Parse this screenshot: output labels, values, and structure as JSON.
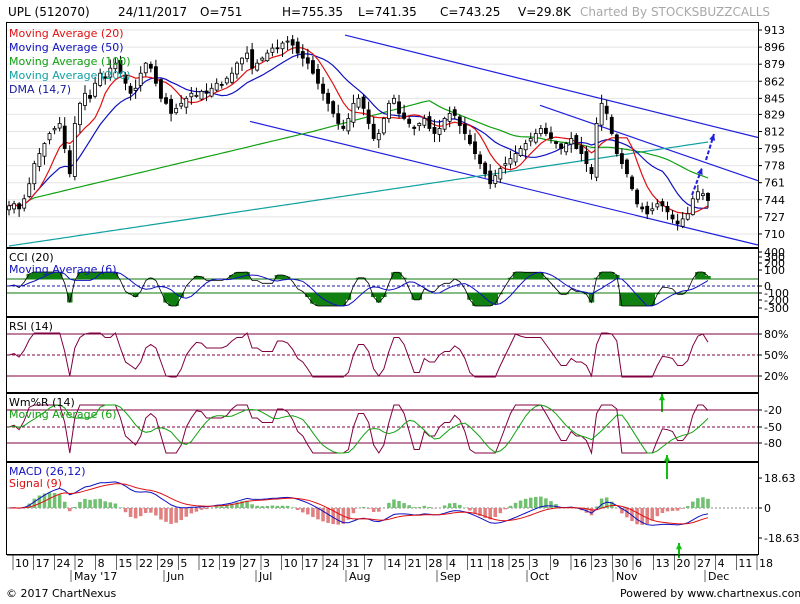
{
  "header": {
    "ticker": "UPL (512070)",
    "date": "24/11/2017",
    "open": "O=751",
    "high": "H=755.35",
    "low": "L=741.35",
    "close": "C=743.25",
    "volume": "V=29.8K",
    "watermark": "Charted By STOCKSBUZZCALLS"
  },
  "footer": {
    "copyright": "© 2017 ChartNexus",
    "powered": "Powered by www.chartnexus.com"
  },
  "colors": {
    "ma20": "#e01010",
    "ma50": "#1010c0",
    "ma100": "#10a010",
    "ma200": "#10a0a0",
    "dma": "#1818a0",
    "channel": "#2020e0",
    "rsi": "#800040",
    "wmr": "#800040",
    "macd": "#1010c0",
    "signal": "#e01010",
    "hist_pos": "#70c070",
    "hist_neg": "#e08080",
    "arrow_green": "#10c010",
    "arrow_blue": "#2020e0"
  },
  "chart_data": [
    {
      "type": "candlestick",
      "panel": "price",
      "legend": [
        "Moving Average (20)",
        "Moving Average (50)",
        "Moving Average (100)",
        "Moving Average (200)",
        "DMA (14,7)"
      ],
      "yticks": [
        913,
        896,
        879,
        862,
        845,
        829,
        812,
        795,
        778,
        761,
        744,
        727,
        710
      ],
      "ylim": [
        697,
        920
      ],
      "x": [
        "2017-05-10",
        "2017-05-11",
        "2017-05-12",
        "2017-05-15",
        "2017-05-16",
        "2017-05-17",
        "2017-05-18",
        "2017-05-19",
        "2017-05-22",
        "2017-05-23",
        "2017-05-24",
        "2017-05-25",
        "2017-05-26",
        "2017-05-29",
        "2017-05-30",
        "2017-05-31",
        "2017-06-01",
        "2017-06-02",
        "2017-06-05",
        "2017-06-06",
        "2017-06-07",
        "2017-06-08",
        "2017-06-09",
        "2017-06-12",
        "2017-06-13",
        "2017-06-14",
        "2017-06-15",
        "2017-06-16",
        "2017-06-19",
        "2017-06-20",
        "2017-06-21",
        "2017-06-22",
        "2017-06-23",
        "2017-06-26",
        "2017-06-27",
        "2017-06-28",
        "2017-06-29",
        "2017-06-30",
        "2017-07-03",
        "2017-07-04",
        "2017-07-05",
        "2017-07-06",
        "2017-07-07",
        "2017-07-10",
        "2017-07-11",
        "2017-07-12",
        "2017-07-13",
        "2017-07-14",
        "2017-07-17",
        "2017-07-18",
        "2017-07-19",
        "2017-07-20",
        "2017-07-21",
        "2017-07-24",
        "2017-07-25",
        "2017-07-26",
        "2017-07-27",
        "2017-07-28",
        "2017-07-31",
        "2017-08-01",
        "2017-08-02",
        "2017-08-03",
        "2017-08-04",
        "2017-08-07",
        "2017-08-08",
        "2017-08-09",
        "2017-08-10",
        "2017-08-11",
        "2017-08-14",
        "2017-08-16",
        "2017-08-17",
        "2017-08-18",
        "2017-08-21",
        "2017-08-22",
        "2017-08-23",
        "2017-08-24",
        "2017-08-28",
        "2017-08-29",
        "2017-08-30",
        "2017-08-31",
        "2017-09-01",
        "2017-09-04",
        "2017-09-05",
        "2017-09-06",
        "2017-09-07",
        "2017-09-08",
        "2017-09-11",
        "2017-09-12",
        "2017-09-13",
        "2017-09-14",
        "2017-09-15",
        "2017-09-18",
        "2017-09-19",
        "2017-09-20",
        "2017-09-21",
        "2017-09-22",
        "2017-09-25",
        "2017-09-26",
        "2017-09-27",
        "2017-09-28",
        "2017-09-29",
        "2017-10-03",
        "2017-10-04",
        "2017-10-05",
        "2017-10-06",
        "2017-10-09",
        "2017-10-10",
        "2017-10-11",
        "2017-10-12",
        "2017-10-13",
        "2017-10-16",
        "2017-10-17",
        "2017-10-18",
        "2017-10-19",
        "2017-10-23",
        "2017-10-24",
        "2017-10-25",
        "2017-10-26",
        "2017-10-27",
        "2017-10-30",
        "2017-10-31",
        "2017-11-01",
        "2017-11-02",
        "2017-11-03",
        "2017-11-06",
        "2017-11-07",
        "2017-11-08",
        "2017-11-09",
        "2017-11-10",
        "2017-11-13",
        "2017-11-14",
        "2017-11-15",
        "2017-11-16",
        "2017-11-17",
        "2017-11-20",
        "2017-11-21",
        "2017-11-22",
        "2017-11-23",
        "2017-11-24"
      ],
      "close": [
        738,
        740,
        735,
        745,
        760,
        780,
        790,
        800,
        810,
        815,
        820,
        795,
        770,
        820,
        840,
        850,
        845,
        860,
        870,
        865,
        875,
        880,
        870,
        860,
        850,
        855,
        870,
        880,
        875,
        860,
        845,
        840,
        830,
        835,
        840,
        845,
        850,
        848,
        852,
        850,
        855,
        860,
        858,
        865,
        870,
        880,
        885,
        890,
        875,
        880,
        885,
        890,
        895,
        895,
        900,
        902,
        898,
        890,
        885,
        880,
        870,
        860,
        850,
        840,
        830,
        820,
        815,
        825,
        840,
        845,
        835,
        820,
        805,
        810,
        825,
        840,
        845,
        830,
        825,
        820,
        815,
        820,
        825,
        815,
        810,
        815,
        825,
        830,
        828,
        818,
        810,
        800,
        790,
        780,
        770,
        760,
        768,
        775,
        780,
        785,
        790,
        795,
        800,
        805,
        810,
        815,
        810,
        805,
        800,
        795,
        800,
        805,
        795,
        790,
        780,
        770,
        820,
        840,
        830,
        810,
        790,
        780,
        770,
        755,
        740,
        735,
        730,
        735,
        740,
        738,
        732,
        725,
        720,
        725,
        730,
        745,
        752,
        750,
        743.25
      ],
      "trendlines": "descending channel + arrows",
      "xticks": [
        "10",
        "17",
        "24",
        "2",
        "8",
        "15",
        "22",
        "29",
        "5",
        "12",
        "19",
        "27",
        "3",
        "10",
        "17",
        "24",
        "31",
        "7",
        "14",
        "21",
        "28",
        "4",
        "11",
        "18",
        "25",
        "3",
        "9",
        "16",
        "23",
        "30",
        "6",
        "13",
        "20",
        "27",
        "4",
        "11",
        "18"
      ],
      "month_labels": [
        "May '17",
        "Jun",
        "Jul",
        "Aug",
        "Sep",
        "Oct",
        "Nov",
        "Dec"
      ]
    },
    {
      "type": "line",
      "panel": "cci",
      "legend": [
        "CCI (20)",
        "Moving Average (6)"
      ],
      "yticks": [
        "400",
        "300",
        "200",
        "100",
        "0",
        "-100",
        "-200",
        "-300"
      ]
    },
    {
      "type": "line",
      "panel": "rsi",
      "legend": [
        "RSI (14)"
      ],
      "yticks": [
        "80%",
        "50%",
        "20%"
      ]
    },
    {
      "type": "line",
      "panel": "wmr",
      "legend": [
        "Wm%R (14)",
        "Moving Average (6)"
      ],
      "yticks": [
        "-20",
        "-50",
        "-80"
      ]
    },
    {
      "type": "line",
      "panel": "macd",
      "legend": [
        "MACD (26,12)",
        "Signal (9)"
      ],
      "yticks": [
        "18.63",
        "0",
        "-18.63"
      ]
    }
  ]
}
